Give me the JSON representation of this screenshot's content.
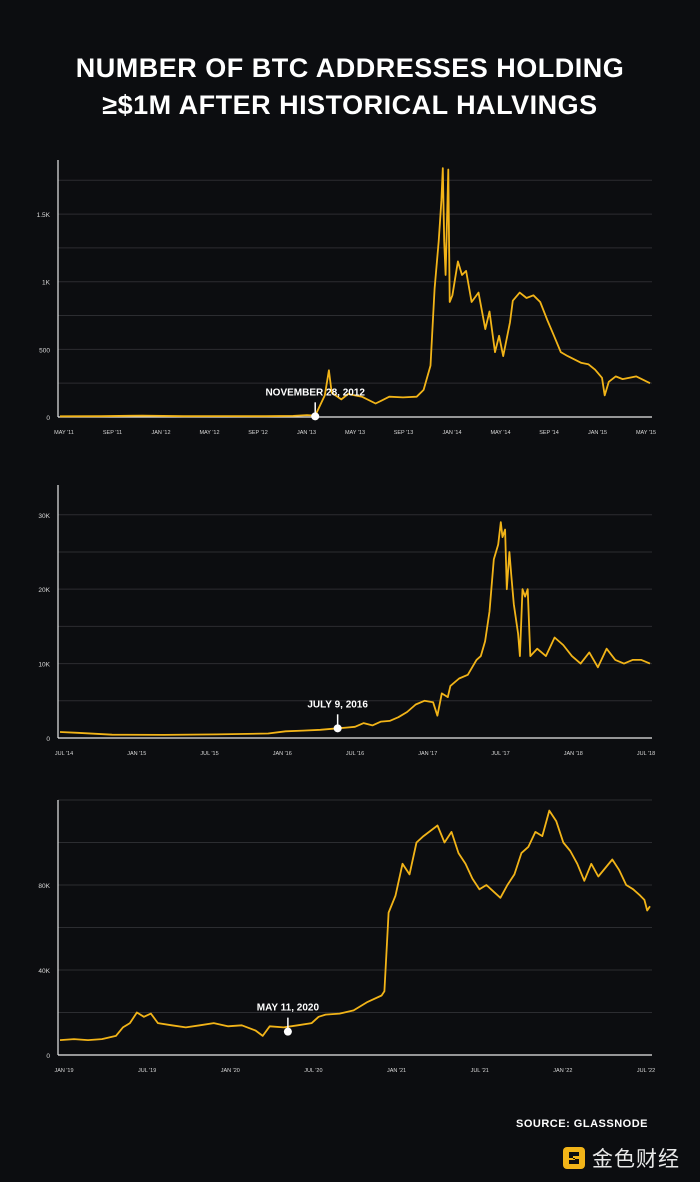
{
  "title": {
    "line1": "NUMBER OF BTC ADDRESSES HOLDING",
    "line2": "≥$1M AFTER HISTORICAL HALVINGS"
  },
  "source": "SOURCE: GLASSNODE",
  "brand": {
    "name": "金色财经",
    "logo_icon": "golden-logo-icon"
  },
  "colors": {
    "background": "#0c0d10",
    "line": "#f2b418",
    "grid": "#2c2d31",
    "text": "#ffffff"
  },
  "chart_data": [
    {
      "type": "line",
      "title": "",
      "xlabel": "",
      "ylabel": "",
      "grid": true,
      "x_ticks": [
        "MAY '11",
        "SEP '11",
        "JAN '12",
        "MAY '12",
        "SEP '12",
        "JAN '13",
        "MAY '13",
        "SEP '13",
        "JAN '14",
        "MAY '14",
        "SEP '14",
        "JAN '15",
        "MAY '15"
      ],
      "y_ticks": [
        "0",
        "500",
        "1K",
        "1.5K"
      ],
      "y_tick_values": [
        0,
        500,
        1000,
        1500
      ],
      "ylim": [
        0,
        1900
      ],
      "series": [
        {
          "values": [
            [
              0,
              5
            ],
            [
              3,
              6
            ],
            [
              6,
              10
            ],
            [
              9,
              6
            ],
            [
              12,
              7
            ],
            [
              15,
              6
            ],
            [
              17,
              8
            ],
            [
              18,
              14
            ],
            [
              18.6,
              10
            ],
            [
              19.3,
              160
            ],
            [
              19.6,
              345
            ],
            [
              19.8,
              180
            ],
            [
              20.5,
              130
            ],
            [
              21,
              170
            ],
            [
              22,
              150
            ],
            [
              23,
              100
            ],
            [
              24,
              150
            ],
            [
              25,
              145
            ],
            [
              26,
              150
            ],
            [
              26.5,
              200
            ],
            [
              27,
              380
            ],
            [
              27.3,
              950
            ],
            [
              27.6,
              1300
            ],
            [
              27.8,
              1600
            ],
            [
              27.9,
              1840
            ],
            [
              28.0,
              1300
            ],
            [
              28.1,
              1050
            ],
            [
              28.3,
              1830
            ],
            [
              28.4,
              850
            ],
            [
              28.6,
              900
            ],
            [
              29,
              1150
            ],
            [
              29.3,
              1050
            ],
            [
              29.6,
              1080
            ],
            [
              30,
              850
            ],
            [
              30.5,
              920
            ],
            [
              31,
              650
            ],
            [
              31.3,
              780
            ],
            [
              31.7,
              480
            ],
            [
              32,
              600
            ],
            [
              32.3,
              450
            ],
            [
              32.8,
              700
            ],
            [
              33,
              860
            ],
            [
              33.5,
              920
            ],
            [
              34,
              880
            ],
            [
              34.5,
              900
            ],
            [
              35,
              850
            ],
            [
              35.5,
              720
            ],
            [
              36,
              600
            ],
            [
              36.5,
              480
            ],
            [
              37,
              450
            ],
            [
              38,
              400
            ],
            [
              38.5,
              390
            ],
            [
              39,
              350
            ],
            [
              39.5,
              290
            ],
            [
              39.7,
              160
            ],
            [
              40,
              260
            ],
            [
              40.5,
              300
            ],
            [
              41,
              280
            ],
            [
              42,
              300
            ],
            [
              43,
              250
            ]
          ]
        }
      ],
      "annotation": {
        "label": "NOVEMBER 28, 2012",
        "x": 18.6,
        "y": 5
      }
    },
    {
      "type": "line",
      "title": "",
      "xlabel": "",
      "ylabel": "",
      "grid": true,
      "x_ticks": [
        "JUL '14",
        "JAN '15",
        "JUL '15",
        "JAN '16",
        "JUL '16",
        "JAN '17",
        "JUL '17",
        "JAN '18",
        "JUL '18"
      ],
      "y_ticks": [
        "0",
        "10K",
        "20K",
        "30K"
      ],
      "y_tick_values": [
        0,
        10000,
        20000,
        30000
      ],
      "ylim": [
        0,
        34000
      ],
      "series": [
        {
          "values": [
            [
              0,
              800
            ],
            [
              2,
              700
            ],
            [
              6,
              450
            ],
            [
              12,
              420
            ],
            [
              18,
              480
            ],
            [
              24,
              600
            ],
            [
              26,
              900
            ],
            [
              28,
              1000
            ],
            [
              30,
              1100
            ],
            [
              32,
              1300
            ],
            [
              33,
              1400
            ],
            [
              34,
              1500
            ],
            [
              35,
              2000
            ],
            [
              36,
              1700
            ],
            [
              37,
              2200
            ],
            [
              38,
              2300
            ],
            [
              39,
              2800
            ],
            [
              40,
              3500
            ],
            [
              41,
              4500
            ],
            [
              42,
              5000
            ],
            [
              43,
              4800
            ],
            [
              43.5,
              3000
            ],
            [
              44,
              6000
            ],
            [
              44.7,
              5500
            ],
            [
              45,
              7000
            ],
            [
              46,
              8000
            ],
            [
              47,
              8500
            ],
            [
              48,
              10500
            ],
            [
              48.5,
              11000
            ],
            [
              49,
              13000
            ],
            [
              49.5,
              17000
            ],
            [
              50,
              24000
            ],
            [
              50.5,
              26000
            ],
            [
              50.8,
              29000
            ],
            [
              51,
              27000
            ],
            [
              51.3,
              28000
            ],
            [
              51.5,
              20000
            ],
            [
              51.8,
              25000
            ],
            [
              52,
              22000
            ],
            [
              52.3,
              18000
            ],
            [
              52.8,
              14000
            ],
            [
              53,
              11000
            ],
            [
              53.3,
              20000
            ],
            [
              53.6,
              19000
            ],
            [
              53.9,
              20000
            ],
            [
              54.2,
              11000
            ],
            [
              55,
              12000
            ],
            [
              56,
              11000
            ],
            [
              57,
              13500
            ],
            [
              58,
              12500
            ],
            [
              59,
              11000
            ],
            [
              60,
              10000
            ],
            [
              61,
              11500
            ],
            [
              62,
              9500
            ],
            [
              63,
              12000
            ],
            [
              64,
              10500
            ],
            [
              65,
              10000
            ],
            [
              66,
              10500
            ],
            [
              67,
              10500
            ],
            [
              68,
              10000
            ]
          ]
        }
      ],
      "annotation": {
        "label": "JULY 9, 2016",
        "x": 32,
        "y": 1300
      }
    },
    {
      "type": "line",
      "title": "",
      "xlabel": "",
      "ylabel": "",
      "grid": true,
      "x_ticks": [
        "JAN '19",
        "JUL '19",
        "JAN '20",
        "JUL '20",
        "JAN '21",
        "JUL '21",
        "JAN '22",
        "JUL '22"
      ],
      "y_ticks": [
        "0",
        "40K",
        "80K"
      ],
      "y_tick_values": [
        0,
        40000,
        80000
      ],
      "ylim": [
        0,
        120000
      ],
      "series": [
        {
          "values": [
            [
              0,
              7000
            ],
            [
              1,
              7500
            ],
            [
              2,
              7000
            ],
            [
              3,
              7500
            ],
            [
              4,
              9000
            ],
            [
              4.5,
              13000
            ],
            [
              5,
              15000
            ],
            [
              5.5,
              20000
            ],
            [
              6,
              18000
            ],
            [
              6.5,
              19500
            ],
            [
              7,
              15000
            ],
            [
              8,
              14000
            ],
            [
              9,
              13000
            ],
            [
              10,
              14000
            ],
            [
              11,
              15000
            ],
            [
              12,
              13500
            ],
            [
              13,
              14000
            ],
            [
              14,
              11500
            ],
            [
              14.5,
              9000
            ],
            [
              15,
              13500
            ],
            [
              16,
              13000
            ],
            [
              17,
              14000
            ],
            [
              18,
              15000
            ],
            [
              18.5,
              18000
            ],
            [
              19,
              19000
            ],
            [
              20,
              19500
            ],
            [
              21,
              21000
            ],
            [
              22,
              25000
            ],
            [
              23,
              28000
            ],
            [
              23.2,
              30000
            ],
            [
              23.5,
              67000
            ],
            [
              24,
              75000
            ],
            [
              24.5,
              90000
            ],
            [
              25,
              85000
            ],
            [
              25.5,
              100000
            ],
            [
              26,
              103000
            ],
            [
              27,
              108000
            ],
            [
              27.5,
              100000
            ],
            [
              28,
              105000
            ],
            [
              28.5,
              95000
            ],
            [
              29,
              90000
            ],
            [
              29.5,
              83000
            ],
            [
              30,
              78000
            ],
            [
              30.5,
              80000
            ],
            [
              31,
              77000
            ],
            [
              31.5,
              74000
            ],
            [
              32,
              80000
            ],
            [
              32.5,
              85000
            ],
            [
              33,
              95000
            ],
            [
              33.5,
              98000
            ],
            [
              34,
              105000
            ],
            [
              34.5,
              103000
            ],
            [
              35,
              115000
            ],
            [
              35.5,
              110000
            ],
            [
              36,
              100000
            ],
            [
              36.5,
              96000
            ],
            [
              37,
              90000
            ],
            [
              37.5,
              82000
            ],
            [
              38,
              90000
            ],
            [
              38.5,
              84000
            ],
            [
              39,
              88000
            ],
            [
              39.5,
              92000
            ],
            [
              40,
              87000
            ],
            [
              40.5,
              80000
            ],
            [
              41,
              78000
            ],
            [
              41.5,
              75000
            ],
            [
              41.8,
              73000
            ],
            [
              42,
              68000
            ],
            [
              42.2,
              70000
            ]
          ]
        }
      ],
      "annotation": {
        "label": "MAY 11, 2020",
        "x": 16.3,
        "y": 11000
      }
    }
  ]
}
